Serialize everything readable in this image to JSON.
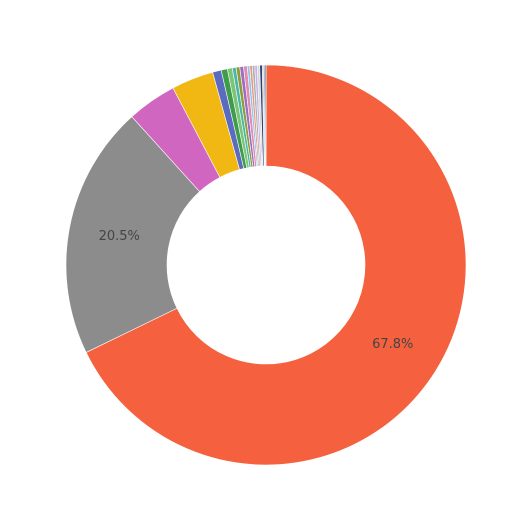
{
  "chart_data": {
    "type": "donut",
    "values": [
      67.8,
      20.5,
      4.0,
      3.4,
      0.7,
      0.5,
      0.4,
      0.3,
      0.3,
      0.3,
      0.3,
      0.2,
      0.2,
      0.2,
      0.2,
      0.2,
      0.2,
      0.1,
      0.1,
      0.1
    ],
    "value_labels": [
      "67.8%",
      "20.5%",
      null,
      null,
      null,
      null,
      null,
      null,
      null,
      null,
      null,
      null,
      null,
      null,
      null,
      null,
      null,
      null,
      null,
      null
    ],
    "colors": [
      "#f5603e",
      "#8c8c8c",
      "#d066bf",
      "#f1b712",
      "#5b6bc0",
      "#3e9c4b",
      "#7cc576",
      "#4bb6a8",
      "#8f9b3a",
      "#9a6fc2",
      "#e38bb0",
      "#8ac7e8",
      "#e59a86",
      "#b0b0b0",
      "#c6b5e3",
      "#d8d8d8",
      "#2f3f7a",
      "#cdb38a",
      "#3a7dd1",
      "#6b6b6b"
    ]
  }
}
